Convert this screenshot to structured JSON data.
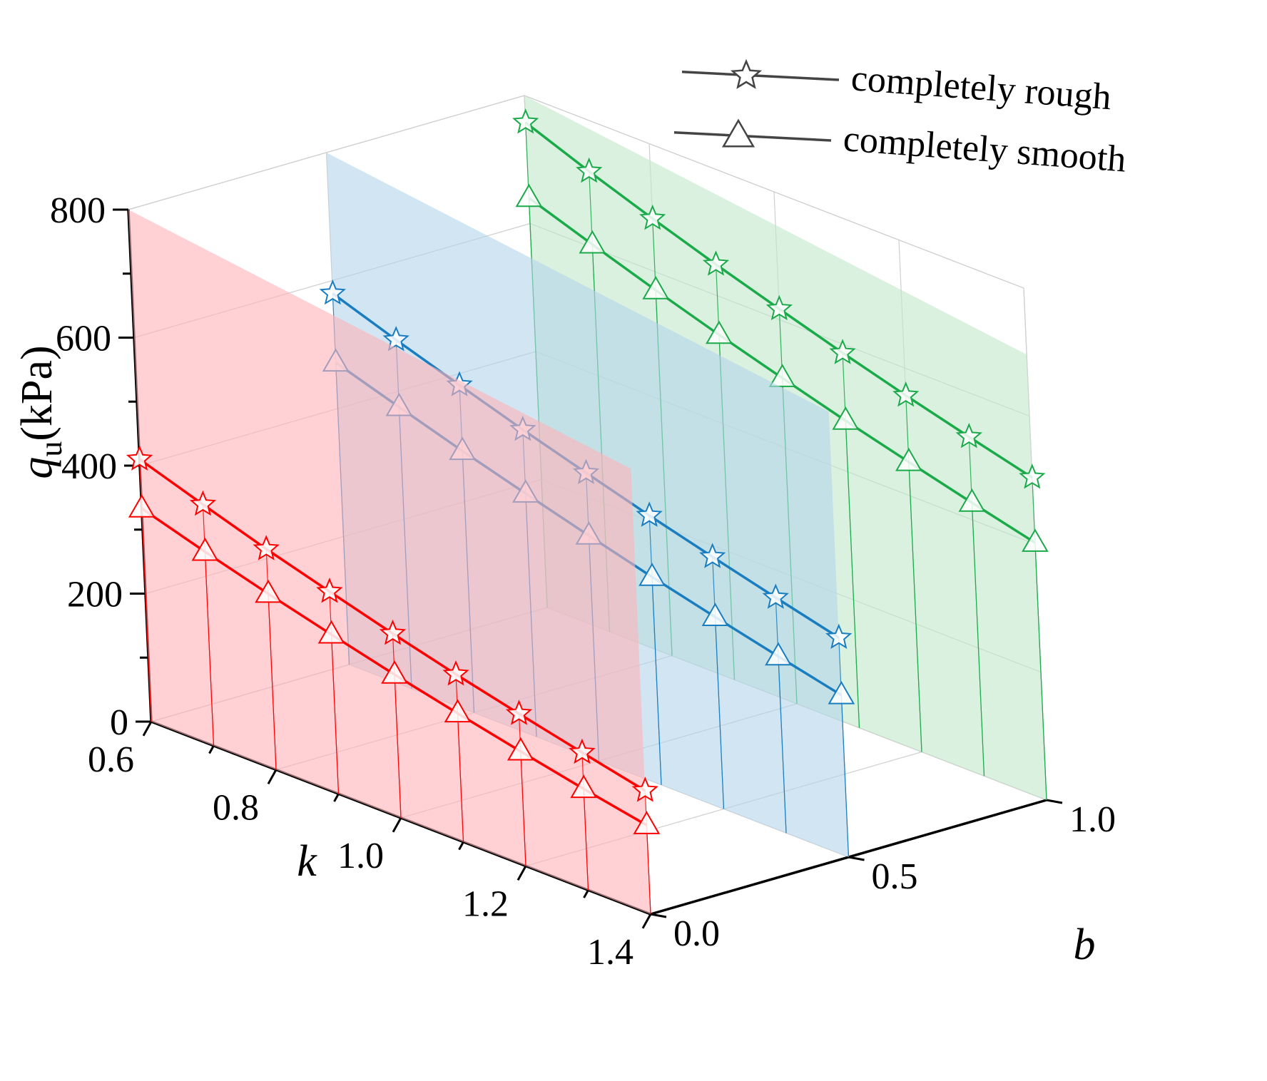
{
  "chart_data": {
    "type": "line",
    "projection": "3d",
    "x_axis": {
      "label": "k",
      "range": [
        0.6,
        1.4
      ],
      "ticks": [
        "0.6",
        "0.8",
        "1.0",
        "1.2",
        "1.4"
      ]
    },
    "y_axis": {
      "label": "b",
      "range": [
        0.0,
        1.0
      ],
      "ticks": [
        "0.0",
        "0.5",
        "1.0"
      ]
    },
    "z_axis": {
      "label_main": "q",
      "label_sub": "u",
      "label_unit": "(kPa)",
      "range": [
        0,
        800
      ],
      "ticks": [
        "0",
        "200",
        "400",
        "600",
        "800"
      ]
    },
    "k_values": [
      0.6,
      0.7,
      0.8,
      0.9,
      1.0,
      1.1,
      1.2,
      1.3,
      1.4
    ],
    "planes": [
      {
        "b": 0.0,
        "color": "#ff0000",
        "fill": "#ffb3b9"
      },
      {
        "b": 0.5,
        "color": "#1a7dc0",
        "fill": "#b3d6ea"
      },
      {
        "b": 1.0,
        "color": "#1aaa4a",
        "fill": "#c2e8c9"
      }
    ],
    "series": [
      {
        "name": "completely rough",
        "b": 0.0,
        "marker": "star",
        "values": [
          410,
          377,
          345,
          316,
          288,
          262,
          238,
          215,
          193
        ]
      },
      {
        "name": "completely smooth",
        "b": 0.0,
        "marker": "triangle",
        "values": [
          333,
          303,
          275,
          249,
          224,
          201,
          179,
          158,
          139
        ]
      },
      {
        "name": "completely rough",
        "b": 0.5,
        "marker": "star",
        "values": [
          580,
          545,
          512,
          480,
          450,
          421,
          394,
          368,
          343
        ]
      },
      {
        "name": "completely smooth",
        "b": 0.5,
        "marker": "triangle",
        "values": [
          472,
          440,
          409,
          380,
          352,
          325,
          300,
          276,
          253
        ]
      },
      {
        "name": "completely rough",
        "b": 1.0,
        "marker": "star",
        "values": [
          758,
          719,
          683,
          649,
          617,
          586,
          557,
          530,
          504
        ]
      },
      {
        "name": "completely smooth",
        "b": 1.0,
        "marker": "triangle",
        "values": [
          640,
          605,
          571,
          539,
          509,
          480,
          453,
          427,
          402
        ]
      }
    ],
    "legend": {
      "position": "top-right",
      "entries": [
        {
          "label": "completely rough",
          "marker": "star"
        },
        {
          "label": "completely smooth",
          "marker": "triangle"
        }
      ]
    },
    "grid": true
  }
}
